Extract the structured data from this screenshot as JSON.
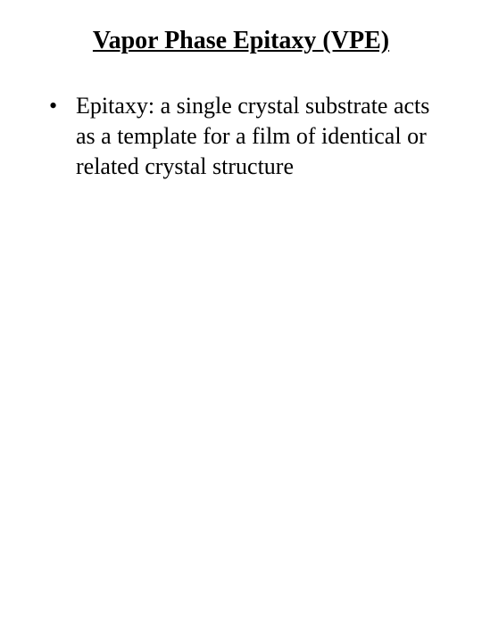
{
  "slide": {
    "title": "Vapor Phase Epitaxy (VPE)",
    "bullets": [
      {
        "text": "Epitaxy: a single crystal substrate acts as a template for a film of identical or related crystal structure"
      }
    ]
  },
  "styling": {
    "background_color": "#ffffff",
    "text_color": "#000000",
    "font_family": "Times New Roman",
    "title_fontsize": 28,
    "body_fontsize": 26,
    "title_underline": true
  }
}
